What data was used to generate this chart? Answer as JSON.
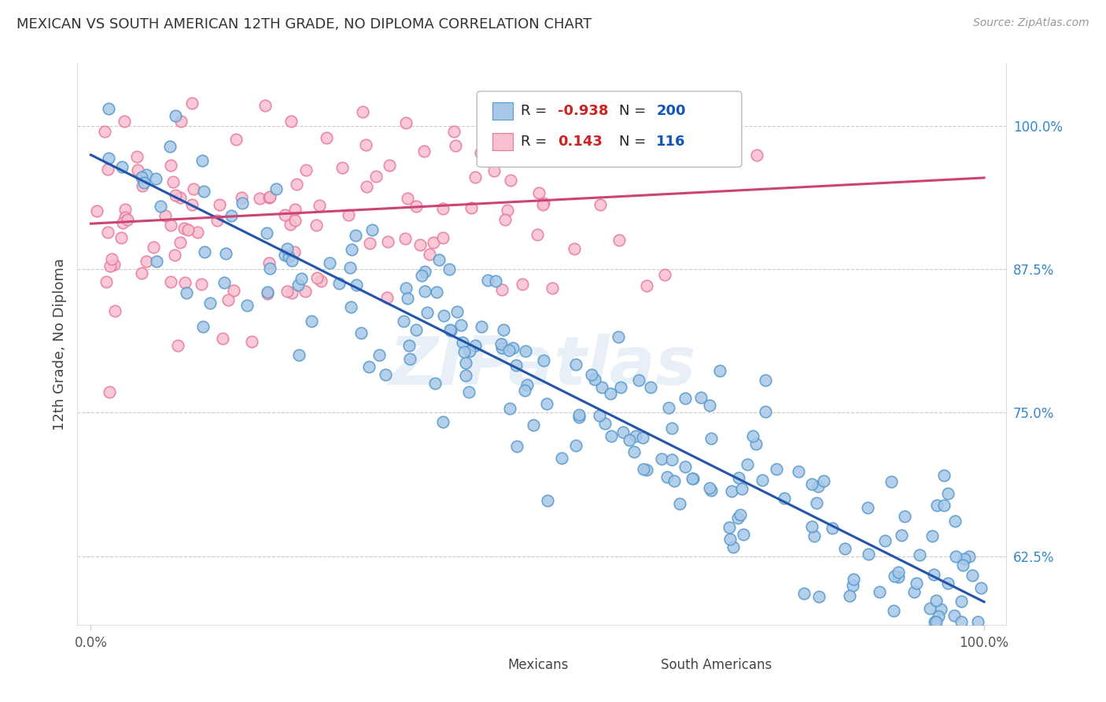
{
  "title": "MEXICAN VS SOUTH AMERICAN 12TH GRADE, NO DIPLOMA CORRELATION CHART",
  "source": "Source: ZipAtlas.com",
  "ylabel": "12th Grade, No Diploma",
  "right_yticks": [
    1.0,
    0.875,
    0.75,
    0.625
  ],
  "right_yticklabels": [
    "100.0%",
    "87.5%",
    "75.0%",
    "62.5%"
  ],
  "legend_labels": [
    "Mexicans",
    "South Americans"
  ],
  "legend_R": [
    -0.938,
    0.143
  ],
  "legend_N": [
    200,
    116
  ],
  "blue_color": "#a8c8e8",
  "blue_edge_color": "#5599cc",
  "pink_color": "#f8c0d0",
  "pink_edge_color": "#e87898",
  "blue_line_color": "#2255aa",
  "pink_line_color": "#cc4477",
  "background_color": "#ffffff",
  "watermark": "ZIPatlas",
  "N_blue": 200,
  "N_pink": 116,
  "blue_slope": -0.39,
  "blue_intercept": 0.975,
  "blue_noise_std": 0.038,
  "pink_slope": 0.04,
  "pink_intercept": 0.915,
  "pink_noise_std": 0.048,
  "ylim_low": 0.565,
  "ylim_high": 1.055,
  "xlim_low": -0.015,
  "xlim_high": 1.025
}
